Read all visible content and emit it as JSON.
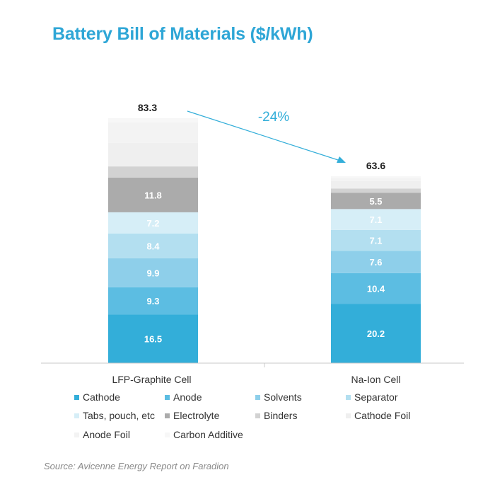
{
  "chart_data": {
    "type": "bar",
    "stacked": true,
    "title": "Battery Bill of Materials ($/kWh)",
    "xlabel": "",
    "ylabel": "",
    "categories": [
      "LFP-Graphite Cell",
      "Na-Ion Cell"
    ],
    "totals": [
      "83.3",
      "63.6"
    ],
    "totals_num": [
      83.3,
      63.6
    ],
    "ylim": [
      0,
      83.3
    ],
    "change_label": "-24%",
    "series": [
      {
        "name": "Cathode",
        "color": "#33aed9",
        "values": [
          16.5,
          20.2
        ],
        "labels": [
          "16.5",
          "20.2"
        ]
      },
      {
        "name": "Anode",
        "color": "#5cbde2",
        "values": [
          9.3,
          10.4
        ],
        "labels": [
          "9.3",
          "10.4"
        ]
      },
      {
        "name": "Solvents",
        "color": "#8ecfea",
        "values": [
          9.9,
          7.6
        ],
        "labels": [
          "9.9",
          "7.6"
        ]
      },
      {
        "name": "Separator",
        "color": "#b3dff0",
        "values": [
          8.4,
          7.1
        ],
        "labels": [
          "8.4",
          "7.1"
        ]
      },
      {
        "name": "Tabs, pouch, etc",
        "color": "#d6eef7",
        "values": [
          7.2,
          7.1
        ],
        "labels": [
          "7.2",
          "7.1"
        ]
      },
      {
        "name": "Electrolyte",
        "color": "#ababab",
        "values": [
          11.8,
          5.5
        ],
        "labels": [
          "11.8",
          "5.5"
        ]
      },
      {
        "name": "Binders",
        "color": "#d2d2d2",
        "values": [
          3.8,
          1.5
        ],
        "labels": [
          "",
          ""
        ]
      },
      {
        "name": "Cathode Foil",
        "color": "#efefef",
        "values": [
          8.0,
          2.5
        ],
        "labels": [
          "",
          ""
        ]
      },
      {
        "name": "Anode Foil",
        "color": "#f3f3f3",
        "values": [
          7.0,
          1.0
        ],
        "labels": [
          "",
          ""
        ]
      },
      {
        "name": "Carbon Additive",
        "color": "#f7f7f7",
        "values": [
          1.4,
          0.7
        ],
        "labels": [
          "",
          ""
        ]
      }
    ]
  },
  "source": "Source: Avicenne Energy Report on Faradion"
}
